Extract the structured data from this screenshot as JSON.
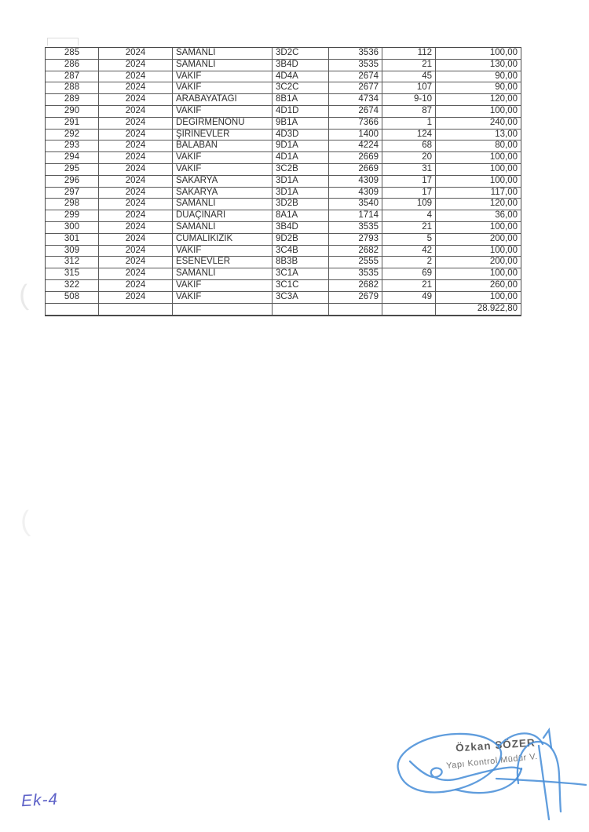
{
  "table": {
    "rows": [
      [
        "285",
        "2024",
        "SAMANLI",
        "3D2C",
        "3536",
        "112",
        "100,00"
      ],
      [
        "286",
        "2024",
        "SAMANLI",
        "3B4D",
        "3535",
        "21",
        "130,00"
      ],
      [
        "287",
        "2024",
        "VAKIF",
        "4D4A",
        "2674",
        "45",
        "90,00"
      ],
      [
        "288",
        "2024",
        "VAKIF",
        "3C2C",
        "2677",
        "107",
        "90,00"
      ],
      [
        "289",
        "2024",
        "ARABAYATAĞI",
        "8B1A",
        "4734",
        "9-10",
        "120,00"
      ],
      [
        "290",
        "2024",
        "VAKIF",
        "4D1D",
        "2674",
        "87",
        "100,00"
      ],
      [
        "291",
        "2024",
        "DEĞİRMENÖNÜ",
        "9B1A",
        "7366",
        "1",
        "240,00"
      ],
      [
        "292",
        "2024",
        "ŞİRİNEVLER",
        "4D3D",
        "1400",
        "124",
        "13,00"
      ],
      [
        "293",
        "2024",
        "BALABAN",
        "9D1A",
        "4224",
        "68",
        "80,00"
      ],
      [
        "294",
        "2024",
        "VAKIF",
        "4D1A",
        "2669",
        "20",
        "100,00"
      ],
      [
        "295",
        "2024",
        "VAKIF",
        "3C2B",
        "2669",
        "31",
        "100,00"
      ],
      [
        "296",
        "2024",
        "SAKARYA",
        "3D1A",
        "4309",
        "17",
        "100,00"
      ],
      [
        "297",
        "2024",
        "SAKARYA",
        "3D1A",
        "4309",
        "17",
        "117,00"
      ],
      [
        "298",
        "2024",
        "SAMANLI",
        "3D2B",
        "3540",
        "109",
        "120,00"
      ],
      [
        "299",
        "2024",
        "DUAÇINARI",
        "8A1A",
        "1714",
        "4",
        "36,00"
      ],
      [
        "300",
        "2024",
        "SAMANLI",
        "3B4D",
        "3535",
        "21",
        "100,00"
      ],
      [
        "301",
        "2024",
        "CUMALIKIZIK",
        "9D2B",
        "2793",
        "5",
        "200,00"
      ],
      [
        "309",
        "2024",
        "VAKIF",
        "3C4B",
        "2682",
        "42",
        "100,00"
      ],
      [
        "312",
        "2024",
        "ESENEVLER",
        "8B3B",
        "2555",
        "2",
        "200,00"
      ],
      [
        "315",
        "2024",
        "SAMANLI",
        "3C1A",
        "3535",
        "69",
        "100,00"
      ],
      [
        "322",
        "2024",
        "VAKIF",
        "3C1C",
        "2682",
        "21",
        "260,00"
      ],
      [
        "508",
        "2024",
        "VAKIF",
        "3C3A",
        "2679",
        "49",
        "100,00"
      ]
    ],
    "total_amount": "28.922,80"
  },
  "stamp": {
    "name": "Özkan SÖZER",
    "title": "Yapı Kontrol Müdür V."
  },
  "signature": {
    "ink_color": "#4a90d8"
  },
  "handwriting": {
    "annex_note": "Ek-4",
    "ink_color": "#5f63c8"
  }
}
